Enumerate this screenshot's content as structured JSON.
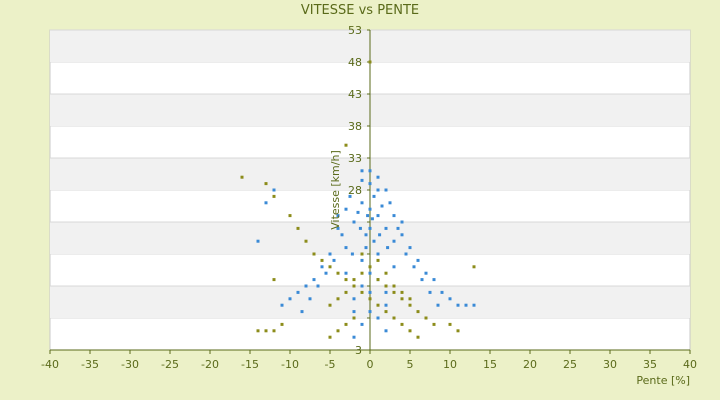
{
  "chart_data": {
    "type": "scatter",
    "title": "VITESSE vs PENTE",
    "xlabel": "Pente [%]",
    "ylabel": "Vitesse [km/h]",
    "xlim": [
      -40,
      40
    ],
    "ylim": [
      3,
      53
    ],
    "xticks": [
      -40,
      -35,
      -30,
      -25,
      -20,
      -15,
      -10,
      -5,
      0,
      5,
      10,
      15,
      20,
      25,
      30,
      35,
      40
    ],
    "yticks": [
      3,
      8,
      13,
      18,
      23,
      28,
      33,
      38,
      43,
      48,
      53
    ],
    "ytick_labels": [
      "3",
      "",
      "",
      "",
      "",
      "28",
      "33",
      "38",
      "43",
      "48",
      "53"
    ],
    "grid": "alternating horizontal bands",
    "legend": "none",
    "series": [
      {
        "color": "#3a8ad6",
        "points": [
          [
            0,
            25
          ],
          [
            1,
            24
          ],
          [
            -1,
            26
          ],
          [
            2,
            22
          ],
          [
            -2,
            23
          ],
          [
            0.5,
            27
          ],
          [
            -0.5,
            21
          ],
          [
            3,
            20
          ],
          [
            -3,
            19
          ],
          [
            1.5,
            25.5
          ],
          [
            -1.5,
            24.5
          ],
          [
            0,
            22
          ],
          [
            2.5,
            26
          ],
          [
            -2.5,
            27
          ],
          [
            4,
            21
          ],
          [
            -4,
            22
          ],
          [
            1,
            18
          ],
          [
            -1,
            17
          ],
          [
            0.3,
            23.5
          ],
          [
            -0.3,
            24
          ],
          [
            5,
            19
          ],
          [
            -5,
            18
          ],
          [
            6,
            17
          ],
          [
            -6,
            16
          ],
          [
            7,
            15
          ],
          [
            8,
            14
          ],
          [
            9,
            12
          ],
          [
            10,
            11
          ],
          [
            11,
            10
          ],
          [
            12,
            10
          ],
          [
            13,
            10
          ],
          [
            -7,
            14
          ],
          [
            -8,
            13
          ],
          [
            -9,
            12
          ],
          [
            -10,
            11
          ],
          [
            -11,
            10
          ],
          [
            -12,
            28
          ],
          [
            -13,
            26
          ],
          [
            -14,
            20
          ],
          [
            0,
            29
          ],
          [
            1,
            28
          ],
          [
            -1,
            29.5
          ],
          [
            2,
            28
          ],
          [
            3,
            24
          ],
          [
            4,
            23
          ],
          [
            -3,
            25
          ],
          [
            -4,
            24
          ],
          [
            0,
            15
          ],
          [
            1,
            14
          ],
          [
            -1,
            13
          ],
          [
            2,
            12
          ],
          [
            -2,
            11
          ],
          [
            3,
            16
          ],
          [
            -3,
            15
          ],
          [
            0,
            9
          ],
          [
            1,
            8
          ],
          [
            -1,
            7
          ],
          [
            2,
            6
          ],
          [
            -2,
            5
          ],
          [
            0.5,
            20
          ],
          [
            -0.5,
            19
          ],
          [
            1.2,
            21
          ],
          [
            -1.2,
            22
          ],
          [
            2.2,
            19
          ],
          [
            -2.2,
            18
          ],
          [
            3.5,
            22
          ],
          [
            -3.5,
            21
          ],
          [
            4.5,
            18
          ],
          [
            -4.5,
            17
          ],
          [
            5.5,
            16
          ],
          [
            -5.5,
            15
          ],
          [
            6.5,
            14
          ],
          [
            -6.5,
            13
          ],
          [
            7.5,
            12
          ],
          [
            -7.5,
            11
          ],
          [
            8.5,
            10
          ],
          [
            -8.5,
            9
          ],
          [
            0,
            31
          ],
          [
            -1,
            31
          ],
          [
            1,
            30
          ],
          [
            0,
            12
          ],
          [
            2,
            10
          ],
          [
            -2,
            9
          ]
        ]
      },
      {
        "color": "#8c8c1a",
        "points": [
          [
            0,
            48
          ],
          [
            -3,
            35
          ],
          [
            -16,
            30
          ],
          [
            -13,
            29
          ],
          [
            -12,
            27
          ],
          [
            -10,
            24
          ],
          [
            -9,
            22
          ],
          [
            -8,
            20
          ],
          [
            -7,
            18
          ],
          [
            -6,
            17
          ],
          [
            -5,
            16
          ],
          [
            -4,
            15
          ],
          [
            -3,
            14
          ],
          [
            -2,
            13
          ],
          [
            -1,
            12
          ],
          [
            0,
            11
          ],
          [
            1,
            10
          ],
          [
            2,
            9
          ],
          [
            3,
            8
          ],
          [
            4,
            7
          ],
          [
            5,
            6
          ],
          [
            6,
            5
          ],
          [
            -1,
            15
          ],
          [
            1,
            14
          ],
          [
            2,
            13
          ],
          [
            3,
            12
          ],
          [
            4,
            11
          ],
          [
            5,
            10
          ],
          [
            6,
            9
          ],
          [
            7,
            8
          ],
          [
            8,
            7
          ],
          [
            -2,
            8
          ],
          [
            -3,
            7
          ],
          [
            -4,
            6
          ],
          [
            -5,
            5
          ],
          [
            0,
            16
          ],
          [
            1,
            17
          ],
          [
            -1,
            18
          ],
          [
            2,
            15
          ],
          [
            -2,
            14
          ],
          [
            3,
            13
          ],
          [
            -3,
            12
          ],
          [
            4,
            12
          ],
          [
            -4,
            11
          ],
          [
            5,
            11
          ],
          [
            -5,
            10
          ],
          [
            10,
            7
          ],
          [
            11,
            6
          ],
          [
            -11,
            7
          ],
          [
            -12,
            6
          ],
          [
            13,
            16
          ],
          [
            -13,
            6
          ],
          [
            -14,
            6
          ],
          [
            -12,
            14
          ]
        ]
      }
    ]
  }
}
